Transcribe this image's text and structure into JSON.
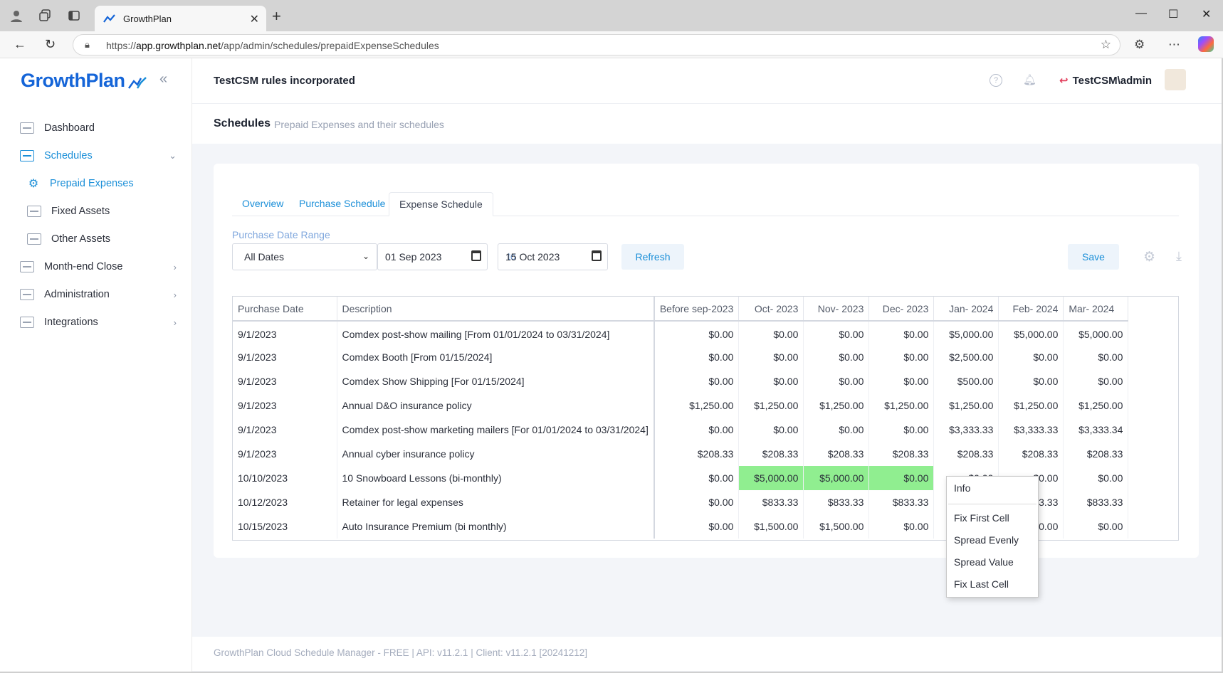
{
  "browser": {
    "tab_title": "GrowthPlan",
    "url_prefix": "https://",
    "url_host": "app.growthplan.net",
    "url_path": "/app/admin/schedules/prepaidExpenseSchedules"
  },
  "sidebar": {
    "logo": "GrowthPlan",
    "items": [
      {
        "label": "Dashboard"
      },
      {
        "label": "Schedules"
      },
      {
        "label": "Prepaid Expenses"
      },
      {
        "label": "Fixed Assets"
      },
      {
        "label": "Other Assets"
      },
      {
        "label": "Month-end Close"
      },
      {
        "label": "Administration"
      },
      {
        "label": "Integrations"
      }
    ]
  },
  "header": {
    "org": "TestCSM rules incorporated",
    "user": "TestCSM\\admin"
  },
  "page": {
    "title": "Schedules",
    "subtitle": "Prepaid Expenses and their schedules"
  },
  "tabs": [
    {
      "label": "Overview"
    },
    {
      "label": "Purchase Schedule"
    },
    {
      "label": "Expense Schedule"
    }
  ],
  "filters": {
    "range_label": "Purchase Date Range",
    "range_value": "All Dates",
    "date_from": "01 Sep 2023",
    "to_label": "to",
    "date_to": "15 Oct 2023",
    "refresh_label": "Refresh",
    "save_label": "Save"
  },
  "table": {
    "columns": [
      "Purchase Date",
      "Description",
      "Before sep-2023",
      "Oct- 2023",
      "Nov- 2023",
      "Dec- 2023",
      "Jan- 2024",
      "Feb- 2024",
      "Mar- 2024"
    ],
    "rows": [
      [
        "9/1/2023",
        "Comdex post-show mailing [From 01/01/2024 to 03/31/2024]",
        "$0.00",
        "$0.00",
        "$0.00",
        "$0.00",
        "$5,000.00",
        "$5,000.00",
        "$5,000.00"
      ],
      [
        "9/1/2023",
        "Comdex Booth [From 01/15/2024]",
        "$0.00",
        "$0.00",
        "$0.00",
        "$0.00",
        "$2,500.00",
        "$0.00",
        "$0.00"
      ],
      [
        "9/1/2023",
        "Comdex Show Shipping [For 01/15/2024]",
        "$0.00",
        "$0.00",
        "$0.00",
        "$0.00",
        "$500.00",
        "$0.00",
        "$0.00"
      ],
      [
        "9/1/2023",
        "Annual D&O insurance policy",
        "$1,250.00",
        "$1,250.00",
        "$1,250.00",
        "$1,250.00",
        "$1,250.00",
        "$1,250.00",
        "$1,250.00"
      ],
      [
        "9/1/2023",
        "Comdex post-show marketing mailers [For 01/01/2024 to 03/31/2024]",
        "$0.00",
        "$0.00",
        "$0.00",
        "$0.00",
        "$3,333.33",
        "$3,333.33",
        "$3,333.34"
      ],
      [
        "9/1/2023",
        "Annual cyber insurance policy",
        "$208.33",
        "$208.33",
        "$208.33",
        "$208.33",
        "$208.33",
        "$208.33",
        "$208.33"
      ],
      [
        "10/10/2023",
        "10 Snowboard Lessons (bi-monthly)",
        "$0.00",
        "$5,000.00",
        "$5,000.00",
        "$0.00",
        "$0.00",
        "$0.00",
        "$0.00"
      ],
      [
        "10/12/2023",
        "Retainer for legal expenses",
        "$0.00",
        "$833.33",
        "$833.33",
        "$833.33",
        "$833.33",
        "$833.33",
        "$833.33"
      ],
      [
        "10/15/2023",
        "Auto Insurance Premium (bi monthly)",
        "$0.00",
        "$1,500.00",
        "$1,500.00",
        "$0.00",
        "$0.00",
        "$0.00",
        "$0.00"
      ]
    ],
    "highlight_color": "#90ee90"
  },
  "context_menu": {
    "items": [
      "Info",
      "Fix First Cell",
      "Spread Evenly",
      "Spread Value",
      "Fix Last Cell"
    ]
  },
  "footer": {
    "text": "GrowthPlan Cloud Schedule Manager - FREE | API: v11.2.1 | Client: v11.2.1 [20241212]"
  },
  "colors": {
    "brand": "#1565d8",
    "accent": "#1b8fd8"
  }
}
